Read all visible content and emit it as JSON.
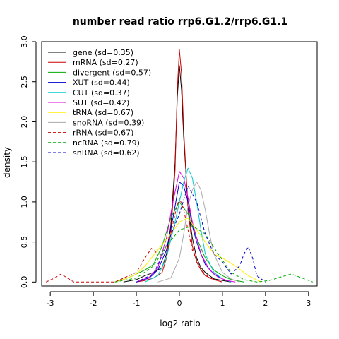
{
  "chart_data": {
    "type": "line",
    "title": "number read ratio rrp6.G1.2/rrp6.G1.1",
    "xlabel": "log2 ratio",
    "ylabel": "density",
    "xlim": [
      -3.2,
      3.2
    ],
    "ylim": [
      -0.05,
      3.0
    ],
    "x_ticks": [
      -3,
      -2,
      -1,
      0,
      1,
      2,
      3
    ],
    "y_ticks": [
      0.0,
      0.5,
      1.0,
      1.5,
      2.0,
      2.5,
      3.0
    ],
    "x_tick_labels": [
      "-3",
      "-2",
      "-1",
      "0",
      "1",
      "2",
      "3"
    ],
    "y_tick_labels": [
      "0.0",
      "0.5",
      "1.0",
      "1.5",
      "2.0",
      "2.5",
      "3.0"
    ],
    "grid": false,
    "legend_position": "top-left",
    "series": [
      {
        "name": "gene (sd=0.35)",
        "color": "#000000",
        "dash": "solid",
        "x": [
          -1.3,
          -1.0,
          -0.8,
          -0.6,
          -0.4,
          -0.3,
          -0.2,
          -0.1,
          -0.05,
          0.0,
          0.05,
          0.1,
          0.2,
          0.3,
          0.4,
          0.5,
          0.6,
          0.7,
          0.8,
          1.0,
          1.2
        ],
        "y": [
          0.0,
          0.03,
          0.08,
          0.12,
          0.18,
          0.35,
          0.7,
          1.5,
          2.3,
          2.7,
          2.4,
          1.8,
          0.95,
          0.55,
          0.3,
          0.18,
          0.12,
          0.08,
          0.04,
          0.02,
          0.0
        ]
      },
      {
        "name": "mRNA (sd=0.27)",
        "color": "#cc0000",
        "dash": "solid",
        "x": [
          -1.0,
          -0.8,
          -0.6,
          -0.4,
          -0.3,
          -0.2,
          -0.1,
          -0.05,
          0.0,
          0.05,
          0.1,
          0.2,
          0.3,
          0.4,
          0.5,
          0.6,
          0.8,
          1.0
        ],
        "y": [
          0.0,
          0.02,
          0.05,
          0.12,
          0.3,
          0.6,
          1.4,
          2.4,
          2.9,
          2.6,
          1.9,
          0.9,
          0.45,
          0.25,
          0.15,
          0.08,
          0.03,
          0.0
        ]
      },
      {
        "name": "divergent (sd=0.57)",
        "color": "#00aa00",
        "dash": "solid",
        "x": [
          -1.5,
          -1.2,
          -1.0,
          -0.8,
          -0.6,
          -0.4,
          -0.2,
          0.0,
          0.2,
          0.4,
          0.6,
          0.8,
          1.0,
          1.2,
          1.5
        ],
        "y": [
          0.0,
          0.05,
          0.1,
          0.15,
          0.22,
          0.45,
          0.8,
          1.0,
          0.85,
          0.55,
          0.3,
          0.15,
          0.08,
          0.03,
          0.0
        ]
      },
      {
        "name": "XUT (sd=0.44)",
        "color": "#0000cc",
        "dash": "solid",
        "x": [
          -1.0,
          -0.7,
          -0.5,
          -0.3,
          -0.15,
          0.0,
          0.1,
          0.2,
          0.3,
          0.4,
          0.5,
          0.6,
          0.8,
          1.0,
          1.2
        ],
        "y": [
          0.0,
          0.05,
          0.15,
          0.4,
          0.8,
          1.25,
          1.2,
          1.0,
          0.7,
          0.5,
          0.35,
          0.22,
          0.1,
          0.04,
          0.0
        ]
      },
      {
        "name": "CUT (sd=0.37)",
        "color": "#00cccc",
        "dash": "solid",
        "x": [
          -0.8,
          -0.5,
          -0.3,
          -0.1,
          0.0,
          0.1,
          0.2,
          0.3,
          0.4,
          0.5,
          0.6,
          0.8,
          1.0,
          1.2
        ],
        "y": [
          0.0,
          0.08,
          0.3,
          0.75,
          1.0,
          1.25,
          1.42,
          1.3,
          1.0,
          0.65,
          0.35,
          0.12,
          0.04,
          0.0
        ]
      },
      {
        "name": "SUT (sd=0.42)",
        "color": "#dd00dd",
        "dash": "solid",
        "x": [
          -1.0,
          -0.7,
          -0.5,
          -0.3,
          -0.15,
          0.0,
          0.1,
          0.2,
          0.3,
          0.5,
          0.7,
          0.9,
          1.1,
          1.3
        ],
        "y": [
          0.0,
          0.06,
          0.18,
          0.55,
          1.0,
          1.38,
          1.3,
          1.05,
          0.75,
          0.35,
          0.15,
          0.06,
          0.02,
          0.0
        ]
      },
      {
        "name": "tRNA (sd=0.67)",
        "color": "#ffee00",
        "dash": "solid",
        "x": [
          -1.5,
          -1.2,
          -1.0,
          -0.8,
          -0.5,
          -0.2,
          0.0,
          0.2,
          0.4,
          0.6,
          0.8,
          1.0,
          1.3,
          1.6,
          1.9
        ],
        "y": [
          0.0,
          0.05,
          0.1,
          0.2,
          0.4,
          0.6,
          0.75,
          0.8,
          0.65,
          0.5,
          0.35,
          0.3,
          0.2,
          0.08,
          0.0
        ]
      },
      {
        "name": "snoRNA (sd=0.39)",
        "color": "#aaaaaa",
        "dash": "solid",
        "x": [
          -0.5,
          -0.2,
          0.0,
          0.1,
          0.2,
          0.3,
          0.4,
          0.5,
          0.6,
          0.7,
          0.8,
          1.0,
          1.2,
          1.4
        ],
        "y": [
          0.0,
          0.05,
          0.3,
          0.6,
          0.95,
          1.15,
          1.25,
          1.15,
          0.9,
          0.6,
          0.35,
          0.12,
          0.04,
          0.0
        ]
      },
      {
        "name": "rRNA (sd=0.67)",
        "color": "#cc0000",
        "dash": "dashed",
        "x": [
          -3.1,
          -2.9,
          -2.75,
          -2.6,
          -2.45,
          -2.3,
          -1.5,
          -1.0,
          -0.8,
          -0.65,
          -0.5,
          -0.3,
          -0.1,
          0.0,
          0.1,
          0.3,
          0.5,
          0.7,
          1.0
        ],
        "y": [
          0.0,
          0.05,
          0.1,
          0.05,
          0.0,
          0.0,
          0.0,
          0.12,
          0.3,
          0.42,
          0.35,
          0.35,
          0.85,
          1.05,
          0.9,
          0.4,
          0.15,
          0.05,
          0.0
        ]
      },
      {
        "name": "ncRNA (sd=0.79)",
        "color": "#00aa00",
        "dash": "dashed",
        "x": [
          -1.5,
          -1.0,
          -0.6,
          -0.3,
          0.0,
          0.3,
          0.6,
          0.9,
          1.2,
          1.5,
          1.8,
          2.1,
          2.4,
          2.6,
          2.8,
          3.1
        ],
        "y": [
          0.0,
          0.05,
          0.2,
          0.45,
          0.65,
          0.7,
          0.6,
          0.35,
          0.12,
          0.03,
          0.0,
          0.02,
          0.07,
          0.1,
          0.06,
          0.0
        ]
      },
      {
        "name": "snRNA (sd=0.62)",
        "color": "#0000cc",
        "dash": "dashed",
        "x": [
          -1.0,
          -0.6,
          -0.3,
          0.0,
          0.2,
          0.4,
          0.6,
          0.8,
          1.0,
          1.2,
          1.4,
          1.5,
          1.6,
          1.7,
          1.8,
          2.0
        ],
        "y": [
          0.0,
          0.1,
          0.45,
          0.85,
          1.2,
          1.0,
          0.6,
          0.35,
          0.25,
          0.1,
          0.2,
          0.35,
          0.44,
          0.3,
          0.08,
          0.0
        ]
      }
    ]
  }
}
